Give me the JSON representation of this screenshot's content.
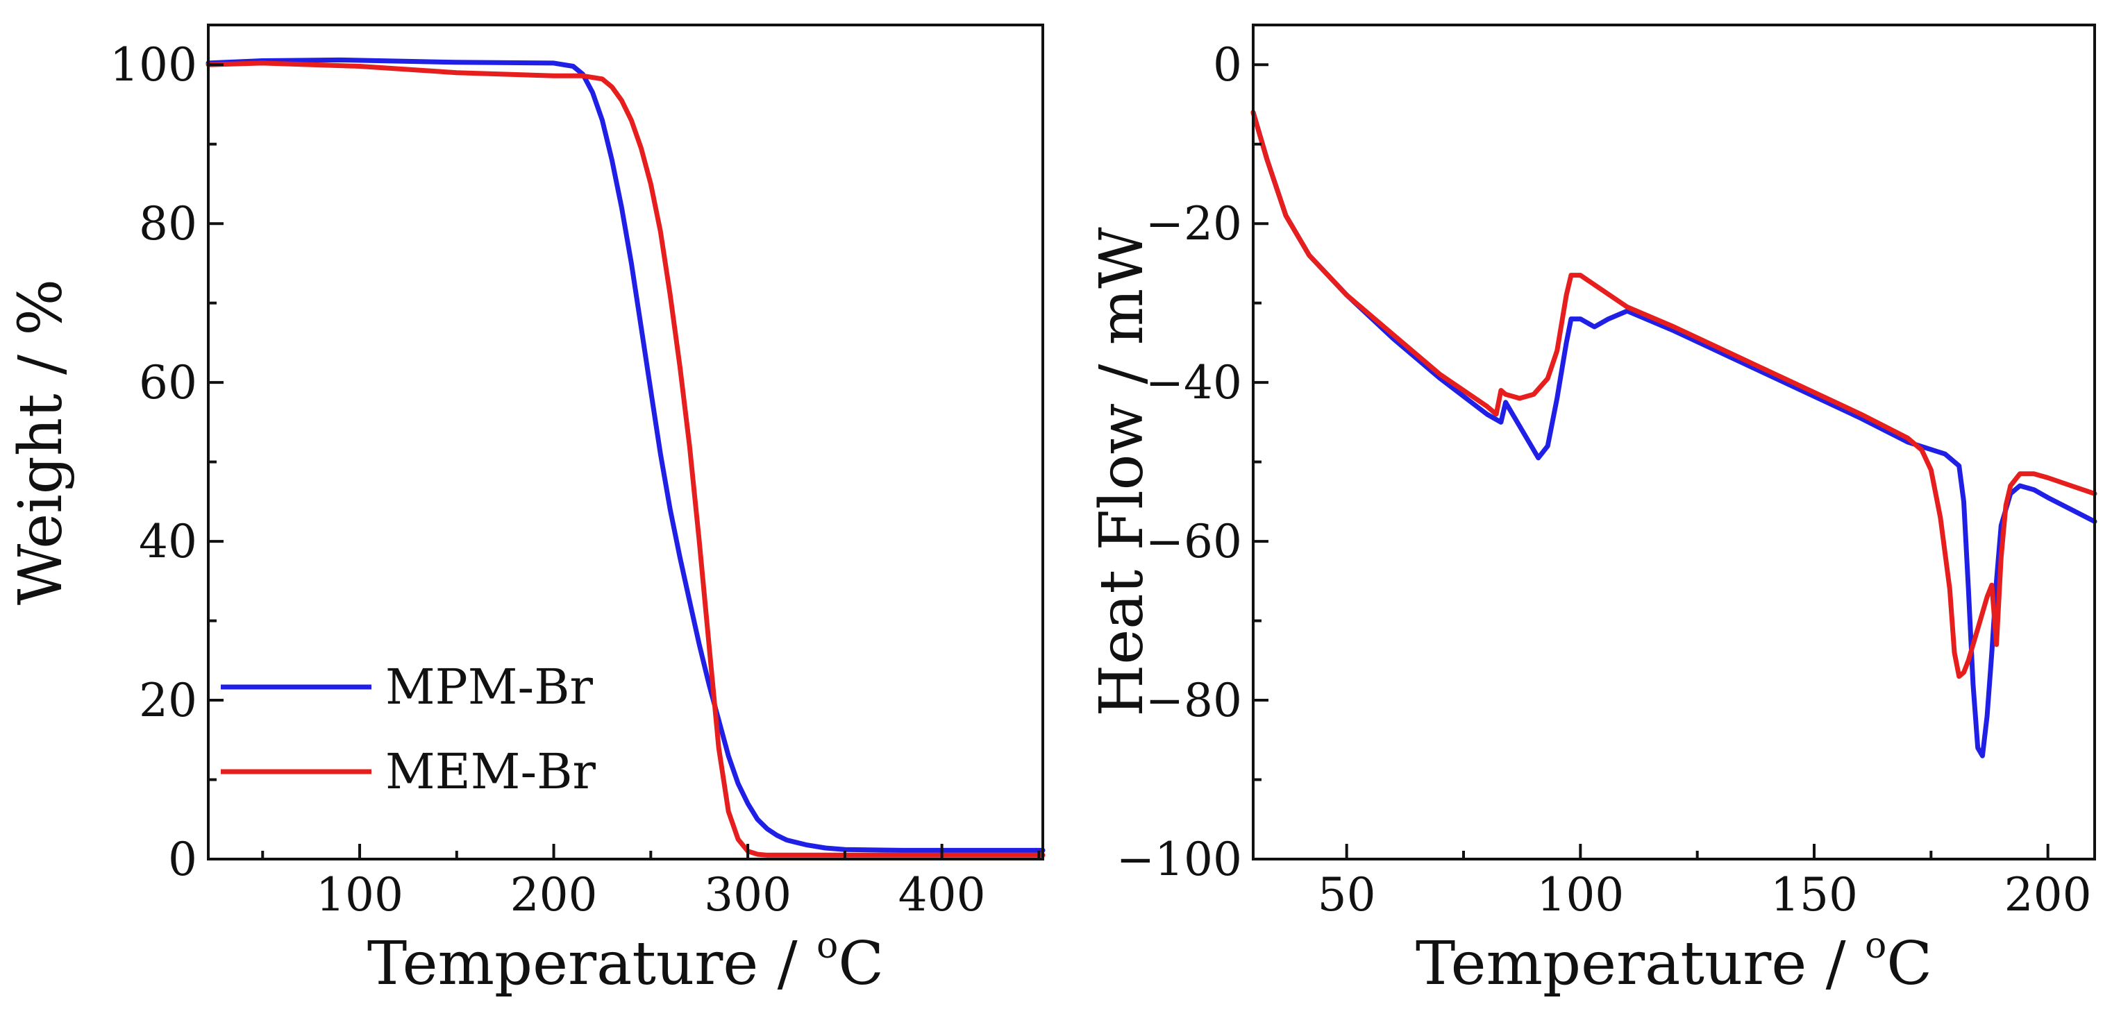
{
  "chart_data": [
    {
      "type": "line",
      "panel": "left",
      "title": "",
      "xlabel": "Temperature / °C",
      "xlabel_main": "Temperature / ",
      "xlabel_sup": "o",
      "xlabel_unit": "C",
      "ylabel": "Weight / %",
      "xlim": [
        22,
        452
      ],
      "ylim": [
        0,
        105
      ],
      "xticks": [
        100,
        200,
        300,
        400
      ],
      "yticks": [
        0,
        20,
        40,
        60,
        80,
        100
      ],
      "legend": "lower-left",
      "series": [
        {
          "name": "MPM-Br",
          "color": "#1f1fe6",
          "x": [
            22,
            50,
            90,
            150,
            200,
            210,
            215,
            220,
            225,
            230,
            235,
            240,
            245,
            250,
            255,
            260,
            265,
            270,
            275,
            280,
            285,
            290,
            295,
            300,
            305,
            310,
            315,
            320,
            330,
            340,
            350,
            380,
            420,
            452
          ],
          "y": [
            100.2,
            100.5,
            100.6,
            100.3,
            100.2,
            99.8,
            98.8,
            96.5,
            93,
            88,
            82,
            75,
            67,
            59,
            51,
            44,
            38,
            32.5,
            27,
            22,
            17.5,
            13,
            9.5,
            7,
            5,
            3.8,
            3.0,
            2.4,
            1.8,
            1.4,
            1.2,
            1.1,
            1.1,
            1.1
          ]
        },
        {
          "name": "MEM-Br",
          "color": "#e61e1e",
          "x": [
            22,
            50,
            100,
            150,
            200,
            215,
            225,
            230,
            235,
            240,
            245,
            250,
            255,
            260,
            265,
            270,
            275,
            280,
            285,
            290,
            295,
            300,
            305,
            310,
            320,
            350,
            400,
            452
          ],
          "y": [
            100.0,
            100.2,
            99.8,
            99.0,
            98.6,
            98.6,
            98.2,
            97.2,
            95.5,
            93,
            89.5,
            85,
            79,
            71,
            62,
            52,
            40,
            27,
            14,
            6,
            2.5,
            1.0,
            0.6,
            0.5,
            0.5,
            0.5,
            0.5,
            0.5
          ]
        }
      ]
    },
    {
      "type": "line",
      "panel": "right",
      "title": "",
      "xlabel": "Temperature / °C",
      "xlabel_main": "Temperature / ",
      "xlabel_sup": "o",
      "xlabel_unit": "C",
      "ylabel": "Heat Flow / mW",
      "xlim": [
        30,
        210
      ],
      "ylim": [
        -100,
        5
      ],
      "xticks": [
        50,
        100,
        150,
        200
      ],
      "yticks": [
        0,
        -20,
        -40,
        -60,
        -80,
        -100
      ],
      "ytick_labels": [
        "0",
        "−20",
        "−40",
        "−60",
        "−80",
        "−100"
      ],
      "legend": "none",
      "series": [
        {
          "name": "MPM-Br",
          "color": "#1f1fe6",
          "x": [
            30,
            33,
            37,
            42,
            50,
            60,
            70,
            80,
            83,
            84,
            87,
            91,
            93,
            95,
            97,
            98,
            100,
            103,
            106,
            110,
            120,
            140,
            160,
            170,
            178,
            181,
            182,
            183,
            184,
            185,
            186,
            187,
            188,
            189,
            190,
            192,
            194,
            197,
            200,
            205,
            210
          ],
          "y": [
            -6,
            -12,
            -19,
            -24,
            -29,
            -34.5,
            -39.5,
            -44,
            -45,
            -42.5,
            -45.5,
            -49.5,
            -48,
            -42,
            -35,
            -32,
            -32,
            -33,
            -32,
            -31,
            -33.5,
            -39,
            -44.5,
            -47.5,
            -49,
            -50.5,
            -55,
            -66,
            -78,
            -86,
            -87,
            -82,
            -74,
            -65,
            -58,
            -54,
            -53,
            -53.5,
            -54.5,
            -56,
            -57.5
          ]
        },
        {
          "name": "MEM-Br",
          "color": "#e61e1e",
          "x": [
            30,
            33,
            37,
            42,
            50,
            60,
            70,
            80,
            82,
            83,
            84,
            87,
            90,
            93,
            95,
            97,
            98,
            100,
            105,
            110,
            120,
            140,
            160,
            170,
            173,
            175,
            177,
            179,
            180,
            181,
            182,
            183,
            184,
            185,
            186,
            187,
            188,
            189,
            190,
            191,
            192,
            194,
            197,
            200,
            205,
            210
          ],
          "y": [
            -6,
            -12,
            -19,
            -24,
            -29,
            -34,
            -39,
            -43,
            -44,
            -41,
            -41.5,
            -42,
            -41.5,
            -39.5,
            -36,
            -29,
            -26.5,
            -26.5,
            -28.5,
            -30.5,
            -33,
            -38.5,
            -44,
            -47,
            -48.5,
            -51,
            -57,
            -66,
            -74,
            -77,
            -76.5,
            -75,
            -73,
            -71,
            -69,
            -67,
            -65.5,
            -73,
            -62,
            -55.5,
            -53,
            -51.5,
            -51.5,
            -52,
            -53,
            -54
          ]
        }
      ]
    }
  ]
}
